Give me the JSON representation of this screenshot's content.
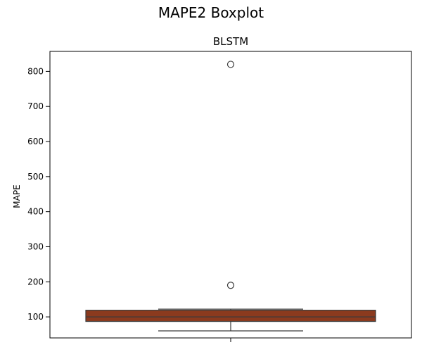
{
  "figure": {
    "suptitle": "MAPE2 Boxplot"
  },
  "chart_data": {
    "type": "boxplot",
    "title": "BLSTM",
    "xlabel": "",
    "ylabel": "MAPE",
    "ylim": [
      40,
      857
    ],
    "yticks": [
      100,
      200,
      300,
      400,
      500,
      600,
      700,
      800
    ],
    "series": [
      {
        "whisker_low": 60,
        "q1": 87,
        "median": 100,
        "q3": 119,
        "whisker_high": 122,
        "outliers": [
          190,
          820
        ],
        "color": "#8B3A1E",
        "edge_color": "#3a3a3a"
      }
    ],
    "grid": false
  }
}
